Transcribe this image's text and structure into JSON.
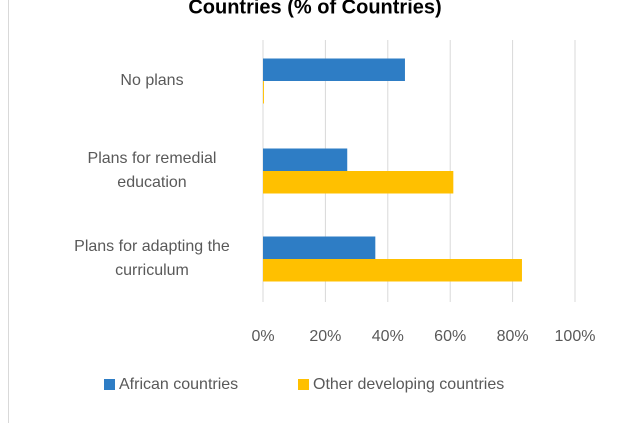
{
  "chart_data": {
    "type": "bar",
    "orientation": "horizontal",
    "title": "Countries (% of Countries)",
    "categories": [
      "No plans",
      "Plans for remedial education",
      "Plans for adapting the curriculum"
    ],
    "series": [
      {
        "name": "African countries",
        "color": "#2e7dc5",
        "values": [
          45.5,
          27,
          36
        ]
      },
      {
        "name": "Other developing countries",
        "color": "#ffc000",
        "values": [
          0.3,
          61,
          83
        ]
      }
    ],
    "xlim": [
      0,
      100
    ],
    "xticks": [
      {
        "value": 0,
        "label": "0%"
      },
      {
        "value": 20,
        "label": "20%"
      },
      {
        "value": 40,
        "label": "40%"
      },
      {
        "value": 60,
        "label": "60%"
      },
      {
        "value": 80,
        "label": "80%"
      },
      {
        "value": 100,
        "label": "100%"
      }
    ],
    "grid": true,
    "legend": "bottom"
  }
}
